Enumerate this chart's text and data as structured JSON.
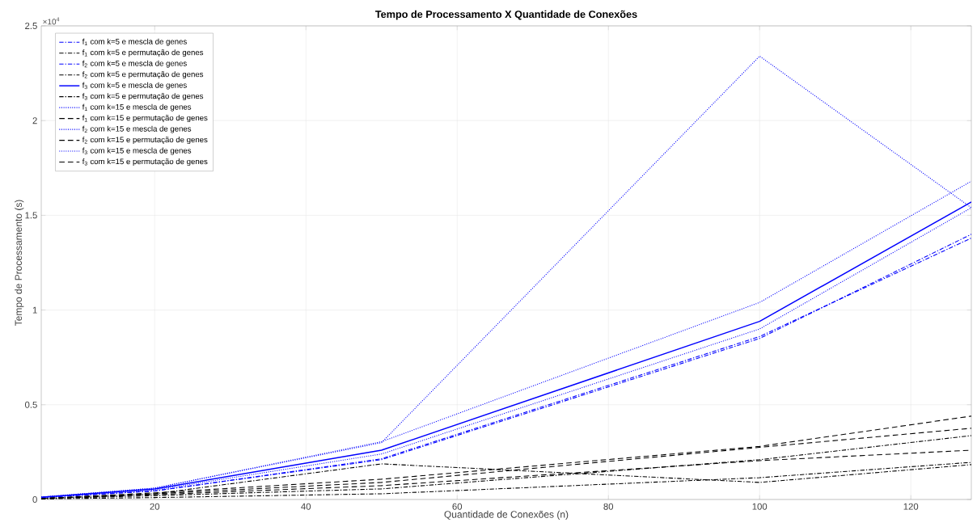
{
  "chart_data": {
    "type": "line",
    "title": "Tempo de Processamento X Quantidade de Conexões",
    "xlabel": "Quantidade de Conexões (n)",
    "ylabel": "Tempo de Processamento (s)",
    "annotations": [
      "×10$^{4}$"
    ],
    "x": [
      5,
      20,
      50,
      100,
      128
    ],
    "xlim": [
      5,
      128
    ],
    "xticks": [
      20,
      40,
      60,
      80,
      100,
      120
    ],
    "ylim": [
      0,
      2.5
    ],
    "yticks": [
      0,
      0.5,
      1,
      1.5,
      2,
      2.5
    ],
    "grid": true,
    "legend": "top left",
    "series": [
      {
        "name": "f$_{1}$ com k=5 e mescla de genes",
        "color": "#0000ff",
        "line_style": "dashdot",
        "values": [
          0.01,
          0.045,
          0.21,
          0.85,
          1.4
        ]
      },
      {
        "name": "f$_{1}$ com k=5 e permutação de genes",
        "color": "#000000",
        "line_style": "dashdot",
        "values": [
          0.005,
          0.03,
          0.188,
          0.09,
          0.184
        ]
      },
      {
        "name": "f$_{2}$ com k=5 e mescla de genes",
        "color": "#0000ff",
        "line_style": "dashdot",
        "values": [
          0.01,
          0.045,
          0.215,
          0.86,
          1.38
        ]
      },
      {
        "name": "f$_{2}$ com k=5 e permutação de genes",
        "color": "#000000",
        "line_style": "dashdot",
        "values": [
          0.003,
          0.01,
          0.03,
          0.115,
          0.196
        ]
      },
      {
        "name": "f$_{3}$ com k=5 e mescla de genes",
        "color": "#0000ff",
        "line_style": "solid",
        "values": [
          0.012,
          0.055,
          0.26,
          0.94,
          1.57
        ]
      },
      {
        "name": "f$_{3}$ com k=5 e permutação de genes",
        "color": "#000000",
        "line_style": "dashdot",
        "values": [
          0.004,
          0.02,
          0.056,
          0.21,
          0.337
        ]
      },
      {
        "name": "f$_{1}$ com k=15 e mescla de genes",
        "color": "#0000ff",
        "line_style": "dotted",
        "values": [
          0.013,
          0.06,
          0.3,
          2.34,
          1.54
        ]
      },
      {
        "name": "f$_{1}$ com k=15 e permutação de genes",
        "color": "#000000",
        "line_style": "dashed",
        "values": [
          0.005,
          0.035,
          0.107,
          0.28,
          0.44
        ]
      },
      {
        "name": "f$_{2}$ com k=15 e mescla de genes",
        "color": "#0000ff",
        "line_style": "dotted",
        "values": [
          0.011,
          0.05,
          0.24,
          0.9,
          1.54
        ]
      },
      {
        "name": "f$_{2}$ com k=15 e permutação de genes",
        "color": "#000000",
        "line_style": "dashed",
        "values": [
          0.005,
          0.03,
          0.09,
          0.275,
          0.376
        ]
      },
      {
        "name": "f$_{3}$ com k=15 e mescla de genes",
        "color": "#0000ff",
        "line_style": "dotted",
        "values": [
          0.013,
          0.06,
          0.305,
          1.04,
          1.68
        ]
      },
      {
        "name": "f$_{3}$ com k=15 e permutação de genes",
        "color": "#000000",
        "line_style": "dashed",
        "values": [
          0.005,
          0.025,
          0.073,
          0.205,
          0.26
        ]
      }
    ]
  }
}
